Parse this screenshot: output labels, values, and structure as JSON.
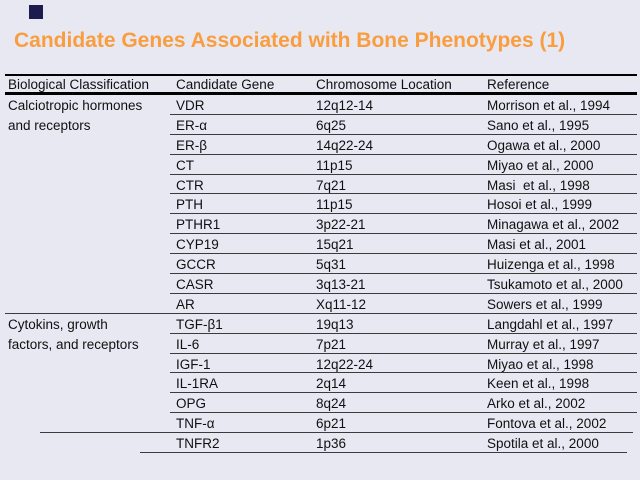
{
  "slide": {
    "title": "Candidate Genes Associated with Bone Phenotypes (1)",
    "title_color": "#F99D3E",
    "background_color": "#E8E8F3",
    "decoration_square_color": "#1B1B4E",
    "table_line_color": "#000000"
  },
  "table": {
    "headers": [
      "Biological Classification",
      "Candidate Gene",
      "Chromosome Location",
      "Reference"
    ],
    "sections": [
      {
        "classification": "Calciotropic hormones and receptors",
        "classification_lines": [
          "Calciotropic hormones",
          "and receptors"
        ],
        "rows": [
          {
            "gene": "VDR",
            "location": "12q12-14",
            "reference": "Morrison et al., 1994"
          },
          {
            "gene": "ER-α",
            "location": "6q25",
            "reference": "Sano et al., 1995"
          },
          {
            "gene": "ER-β",
            "location": "14q22-24",
            "reference": "Ogawa et al., 2000"
          },
          {
            "gene": "CT",
            "location": "11p15",
            "reference": "Miyao et al., 2000"
          },
          {
            "gene": "CTR",
            "location": "7q21",
            "reference": "Masi  et al., 1998"
          },
          {
            "gene": "PTH",
            "location": "11p15",
            "reference": "Hosoi et al., 1999"
          },
          {
            "gene": "PTHR1",
            "location": "3p22-21",
            "reference": "Minagawa et al., 2002"
          },
          {
            "gene": "CYP19",
            "location": "15q21",
            "reference": "Masi et al., 2001"
          },
          {
            "gene": "GCCR",
            "location": "5q31",
            "reference": "Huizenga et al., 1998"
          },
          {
            "gene": "CASR",
            "location": "3q13-21",
            "reference": "Tsukamoto et al., 2000"
          },
          {
            "gene": "AR",
            "location": "Xq11-12",
            "reference": "Sowers et al., 1999"
          }
        ]
      },
      {
        "classification": "Cytokins, growth factors, and receptors",
        "classification_lines": [
          "Cytokins, growth",
          "factors, and receptors"
        ],
        "rows": [
          {
            "gene": "TGF-β1",
            "location": "19q13",
            "reference": "Langdahl et al., 1997"
          },
          {
            "gene": "IL-6",
            "location": "7p21",
            "reference": "Murray et al., 1997"
          },
          {
            "gene": "IGF-1",
            "location": "12q22-24",
            "reference": "Miyao et al., 1998"
          },
          {
            "gene": "IL-1RA",
            "location": "2q14",
            "reference": "Keen et al., 1998"
          },
          {
            "gene": "OPG",
            "location": "8q24",
            "reference": "Arko et al., 2002"
          },
          {
            "gene": "TNF-α",
            "location": "6p21",
            "reference": "Fontova et al., 2002"
          },
          {
            "gene": "TNFR2",
            "location": "1p36",
            "reference": "Spotila et al., 2000"
          }
        ]
      }
    ]
  }
}
